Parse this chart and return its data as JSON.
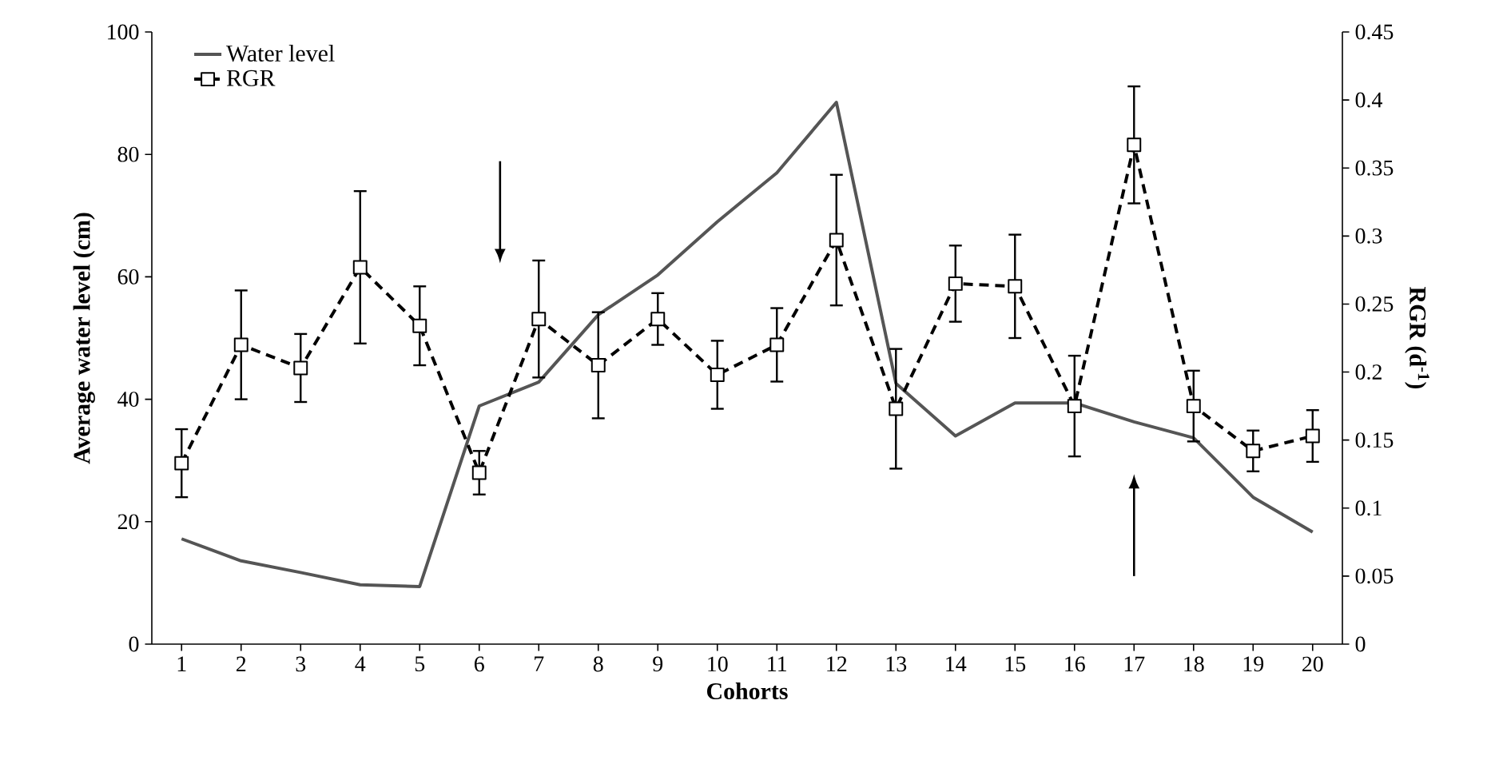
{
  "chart_data": {
    "type": "line",
    "categories": [
      "1",
      "2",
      "3",
      "4",
      "5",
      "6",
      "7",
      "8",
      "9",
      "10",
      "11",
      "12",
      "13",
      "14",
      "15",
      "16",
      "17",
      "18",
      "19",
      "20"
    ],
    "xlabel": "Cohorts",
    "ylabel": "Average water level (cm)",
    "y2label": "RGR (d$^{-1}$)",
    "ylim": [
      0,
      100
    ],
    "yticks": [
      0,
      20,
      40,
      60,
      80,
      100
    ],
    "y2lim": [
      0,
      0.45
    ],
    "y2ticks": [
      0,
      0.05,
      0.1,
      0.15,
      0.2,
      0.25,
      0.3,
      0.35,
      0.4,
      0.45
    ],
    "legend": "top left",
    "series": [
      {
        "name": "Water level",
        "color": "#555555",
        "line_style": "solid",
        "marker": "none",
        "values": [
          17.2,
          13.6,
          11.7,
          9.7,
          9.4,
          38.9,
          42.8,
          53.8,
          60.3,
          69,
          77,
          88.5,
          42.6,
          34,
          39.4,
          39.4,
          36.3,
          33.7,
          24,
          18.3
        ]
      },
      {
        "name": "RGR",
        "color": "#000000",
        "line_style": "dashed",
        "marker": "square",
        "axis": "y2",
        "values": [
          0.133,
          0.22,
          0.203,
          0.277,
          0.234,
          0.126,
          0.239,
          0.205,
          0.239,
          0.198,
          0.22,
          0.297,
          0.173,
          0.265,
          0.263,
          0.175,
          0.367,
          0.175,
          0.142,
          0.153
        ],
        "errors": [
          0.025,
          0.04,
          0.025,
          0.056,
          0.029,
          0.016,
          0.043,
          0.039,
          0.019,
          0.025,
          0.027,
          0.048,
          0.044,
          0.028,
          0.038,
          0.037,
          0.043,
          0.026,
          0.015,
          0.019
        ]
      }
    ]
  }
}
